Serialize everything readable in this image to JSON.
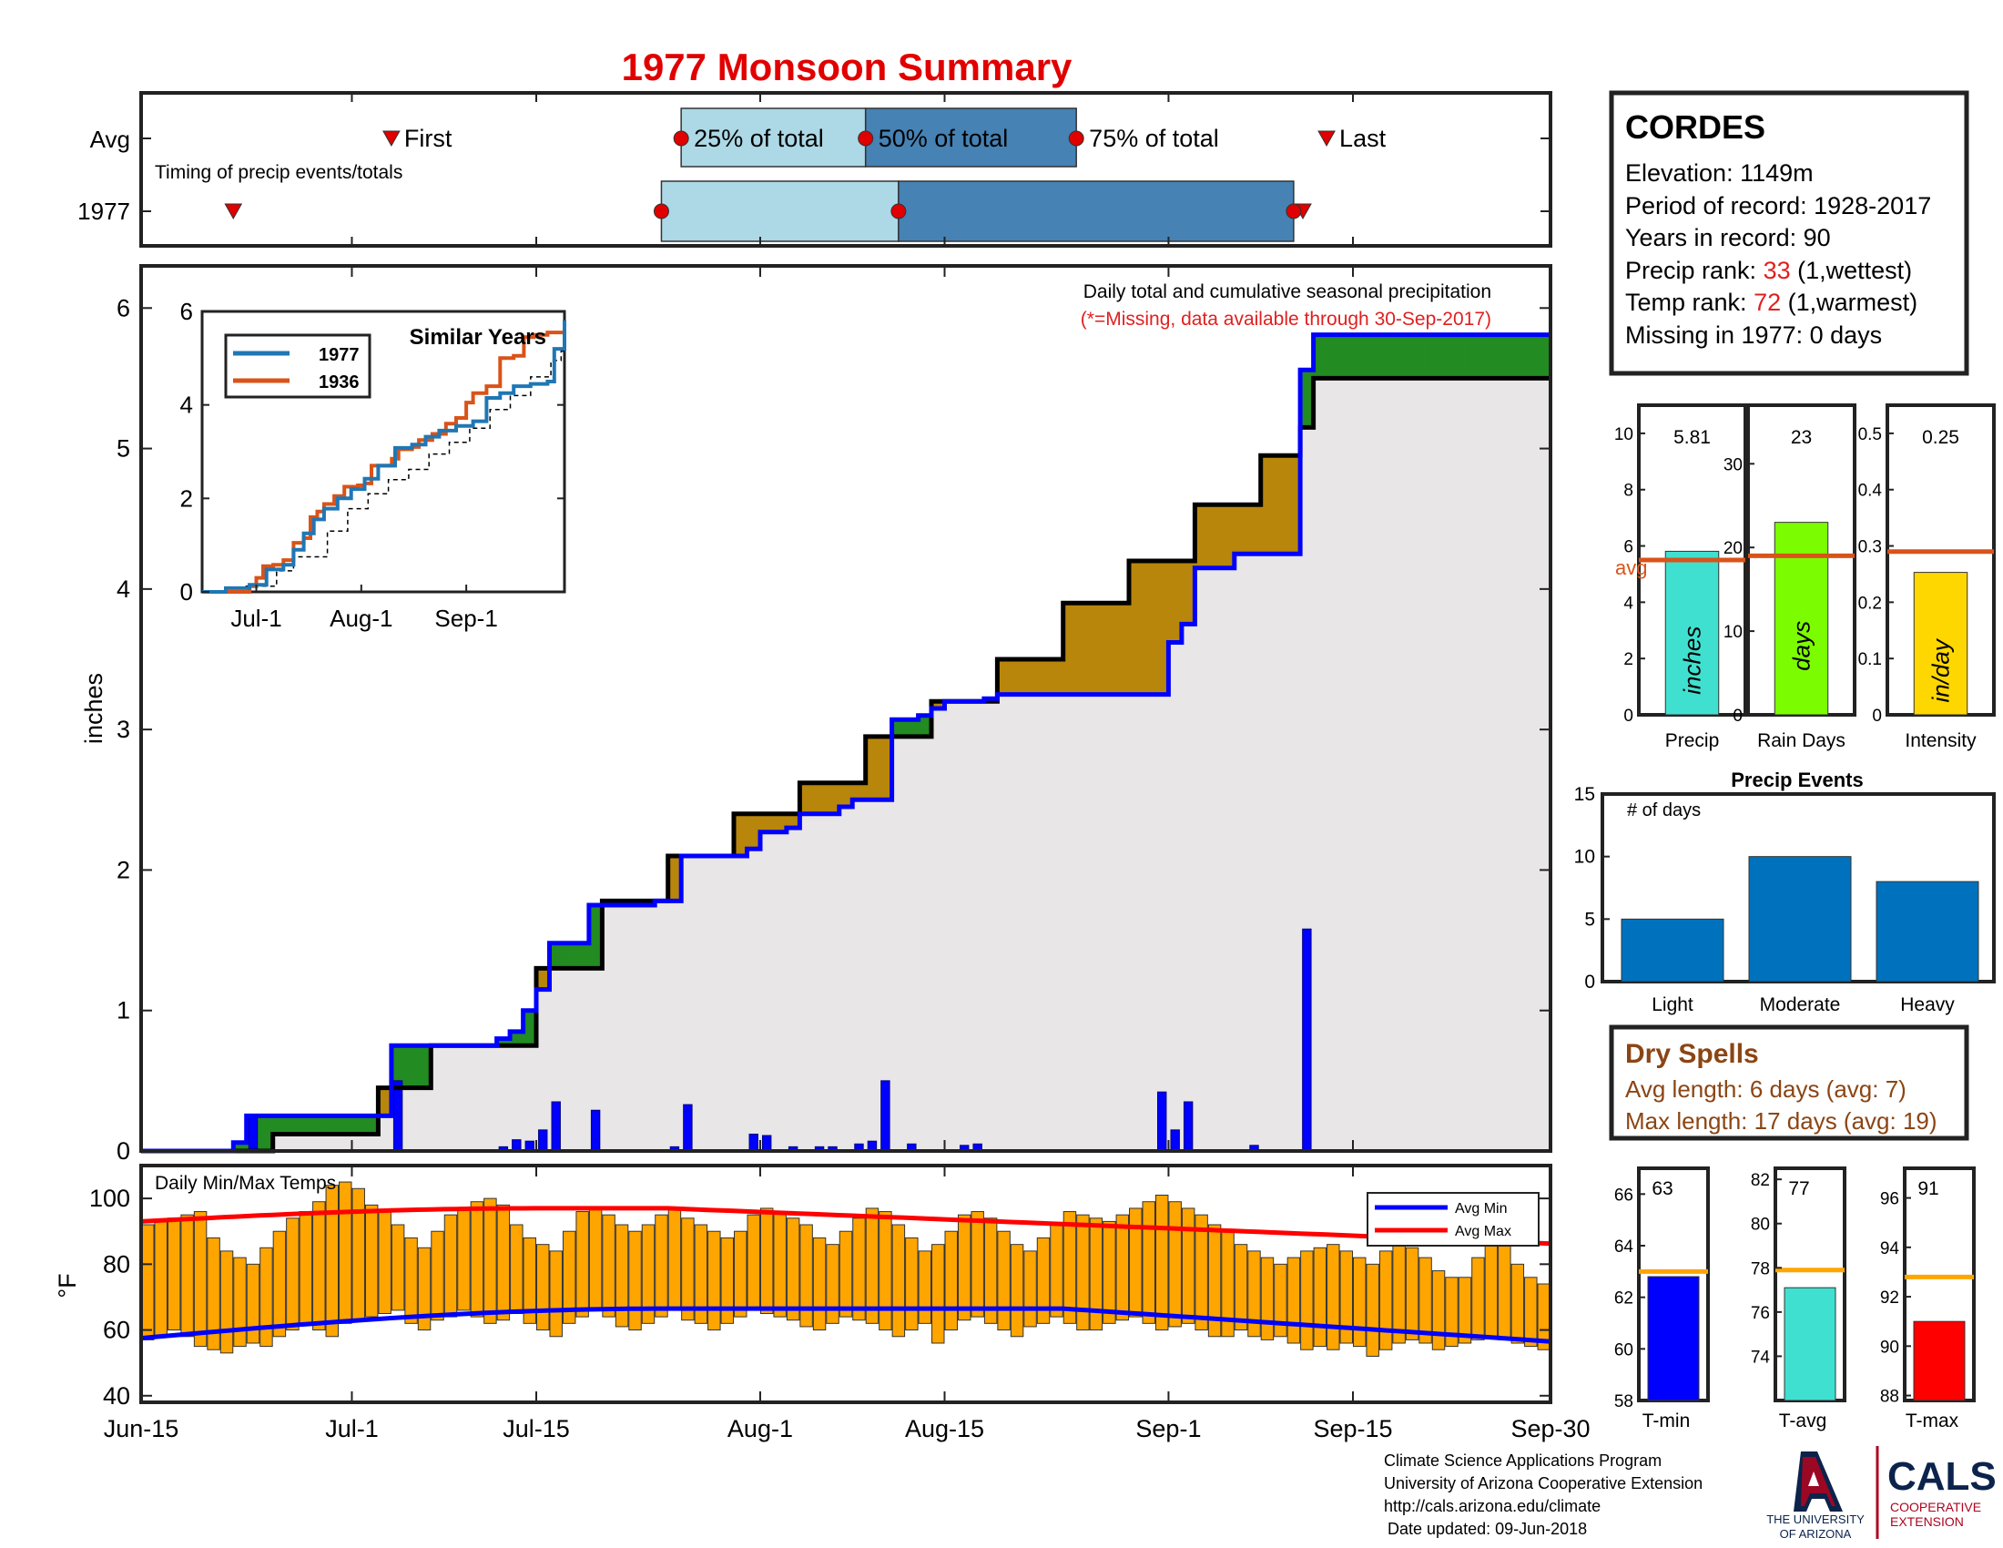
{
  "title": "1977 Monsoon Summary",
  "colors": {
    "title": "#e10000",
    "accent_red": "#e02020",
    "brown": "#8b4513",
    "light_blue": "#add8e6",
    "steel_blue": "#4682b4",
    "gold": "#b8860b",
    "green": "#228b22",
    "blue": "#0000ff",
    "orange_bar": "#ffa500"
  },
  "timing": {
    "row_labels": [
      "Avg",
      "1977"
    ],
    "subtitle": "Timing of precip events/totals",
    "labels": {
      "first": "First",
      "q25": "25% of total",
      "q50": "50% of total",
      "q75": "75% of total",
      "last": "Last"
    },
    "avg": {
      "first": 19,
      "q25": 41,
      "q50": 55,
      "q75": 71,
      "last": 90
    },
    "y1977": {
      "first": 7,
      "q25": 39.5,
      "q50": 57.5,
      "q75": 87.5,
      "last": 88.2
    }
  },
  "station": {
    "name": "CORDES",
    "elevation": "Elevation: 1149m",
    "period": "Period of record: 1928-2017",
    "years": "Years in record: 90",
    "precip_rank_label": "Precip rank: ",
    "precip_rank": "33",
    "precip_rank_note": " (1,wettest)",
    "temp_rank_label": "Temp rank: ",
    "temp_rank": "72",
    "temp_rank_note": " (1,warmest)",
    "missing": "Missing in 1977: 0 days"
  },
  "precip_panel": {
    "note": "Daily total and cumulative seasonal precipitation",
    "missing_note": "(*=Missing, data available through 30-Sep-2017)",
    "ylabel": "inches",
    "ylim": [
      0,
      6.3
    ],
    "yticks": [
      "0",
      "1",
      "2",
      "3",
      "4",
      "5",
      "6"
    ]
  },
  "similar_years": {
    "title": "Similar Years",
    "legend": [
      "1977",
      "1936"
    ],
    "yticks": [
      "0",
      "2",
      "4",
      "6"
    ],
    "xticks": [
      "Jul-1",
      "Aug-1",
      "Sep-1"
    ]
  },
  "temp_panel": {
    "label": "Daily Min/Max Temps",
    "ylabel": "°F",
    "yticks": [
      "40",
      "60",
      "80",
      "100"
    ],
    "ylim": [
      38,
      110
    ],
    "legend": [
      "Avg Min",
      "Avg Max"
    ]
  },
  "xaxis_ticks": [
    "Jun-15",
    "Jul-1",
    "Jul-15",
    "Aug-1",
    "Aug-15",
    "Sep-1",
    "Sep-15",
    "Sep-30"
  ],
  "stats": [
    {
      "label": "Precip",
      "value": "5.81",
      "inside": "inches",
      "ticks": [
        "0",
        "2",
        "4",
        "6",
        "8",
        "10"
      ],
      "ymax": 11,
      "val": 5.81,
      "avg": 5.5,
      "avg_label": "avg",
      "color": "#40e0d0"
    },
    {
      "label": "Rain Days",
      "value": "23",
      "inside": "days",
      "ticks": [
        "0",
        "10",
        "20",
        "30"
      ],
      "ymax": 37,
      "val": 23,
      "avg": 19,
      "color": "#7cfc00"
    },
    {
      "label": "Intensity",
      "value": "0.25",
      "inside": "in/day",
      "ticks": [
        "0",
        "0.1",
        "0.2",
        "0.3",
        "0.4",
        "0.5"
      ],
      "ymax": 0.55,
      "val": 0.253,
      "avg": 0.29,
      "color": "#ffd700"
    }
  ],
  "precip_events": {
    "title": "Precip Events",
    "ylabel": "# of days",
    "categories": [
      "Light",
      "Moderate",
      "Heavy"
    ],
    "values": [
      5,
      10,
      8
    ],
    "ymax": 15,
    "yticks": [
      "0",
      "5",
      "10",
      "15"
    ]
  },
  "dry_spells": {
    "title": "Dry Spells",
    "avg": "Avg length: 6 days (avg: 7)",
    "max": "Max length: 17 days (avg: 19)"
  },
  "temps": [
    {
      "label": "T-min",
      "value": "63",
      "val": 62.8,
      "avg": 63,
      "min": 58,
      "max": 67,
      "ticks": [
        "58",
        "60",
        "62",
        "64",
        "66"
      ],
      "color": "#0000ff"
    },
    {
      "label": "T-avg",
      "value": "77",
      "val": 77.1,
      "avg": 77.9,
      "min": 72,
      "max": 82.5,
      "ticks": [
        "74",
        "76",
        "78",
        "80",
        "82"
      ],
      "color": "#40e0d0"
    },
    {
      "label": "T-max",
      "value": "91",
      "val": 91,
      "avg": 92.8,
      "min": 87.8,
      "max": 97.2,
      "ticks": [
        "88",
        "90",
        "92",
        "94",
        "96"
      ],
      "color": "#ff0000"
    }
  ],
  "footer": {
    "line1": "Climate Science Applications Program",
    "line2": "University of Arizona Cooperative Extension",
    "line3": "http://cals.arizona.edu/climate",
    "line4": "Date updated: 09-Jun-2018",
    "ua_line1": "THE UNIVERSITY",
    "ua_line2": "OF ARIZONA",
    "cals": "CALS",
    "cals_line1": "COOPERATIVE",
    "cals_line2": "EXTENSION"
  },
  "chart_data": [
    {
      "type": "area",
      "title": "Daily total and cumulative seasonal precipitation",
      "ylabel": "inches",
      "ylim": [
        0,
        6.3
      ],
      "x_start": "Jun-15",
      "x_end": "Sep-30",
      "series": [
        {
          "name": "1977",
          "points": [
            [
              0,
              0
            ],
            [
              7,
              0.06
            ],
            [
              8,
              0.25
            ],
            [
              18,
              0.25
            ],
            [
              19,
              0.75
            ],
            [
              25,
              0.75
            ],
            [
              26,
              0.75
            ],
            [
              27,
              0.8
            ],
            [
              28,
              0.85
            ],
            [
              29,
              1.0
            ],
            [
              30,
              1.15
            ],
            [
              31,
              1.48
            ],
            [
              33,
              1.48
            ],
            [
              34,
              1.75
            ],
            [
              38,
              1.75
            ],
            [
              39,
              1.78
            ],
            [
              41,
              2.1
            ],
            [
              46,
              2.15
            ],
            [
              47,
              2.27
            ],
            [
              49,
              2.3
            ],
            [
              50,
              2.4
            ],
            [
              53,
              2.45
            ],
            [
              54,
              2.5
            ],
            [
              56,
              2.5
            ],
            [
              57,
              3.07
            ],
            [
              59,
              3.1
            ],
            [
              60,
              3.15
            ],
            [
              61,
              3.2
            ],
            [
              64,
              3.22
            ],
            [
              65,
              3.25
            ],
            [
              77,
              3.25
            ],
            [
              78,
              3.62
            ],
            [
              79,
              3.75
            ],
            [
              80,
              4.15
            ],
            [
              82,
              4.15
            ],
            [
              83,
              4.25
            ],
            [
              87,
              4.25
            ],
            [
              88,
              5.56
            ],
            [
              89,
              5.81
            ]
          ]
        },
        {
          "name": "Avg",
          "points": [
            [
              0,
              0
            ],
            [
              10,
              0.12
            ],
            [
              18,
              0.45
            ],
            [
              22,
              0.75
            ],
            [
              30,
              1.3
            ],
            [
              35,
              1.78
            ],
            [
              40,
              2.1
            ],
            [
              45,
              2.4
            ],
            [
              50,
              2.62
            ],
            [
              55,
              2.95
            ],
            [
              60,
              3.2
            ],
            [
              65,
              3.5
            ],
            [
              70,
              3.9
            ],
            [
              75,
              4.2
            ],
            [
              80,
              4.6
            ],
            [
              85,
              4.95
            ],
            [
              88,
              5.15
            ],
            [
              89,
              5.5
            ]
          ]
        }
      ],
      "daily_bars": [
        [
          8,
          0.25
        ],
        [
          19,
          0.5
        ],
        [
          27,
          0.03
        ],
        [
          28,
          0.08
        ],
        [
          29,
          0.07
        ],
        [
          30,
          0.15
        ],
        [
          31,
          0.35
        ],
        [
          34,
          0.29
        ],
        [
          40,
          0.03
        ],
        [
          41,
          0.33
        ],
        [
          46,
          0.12
        ],
        [
          47,
          0.11
        ],
        [
          49,
          0.03
        ],
        [
          51,
          0.03
        ],
        [
          52,
          0.03
        ],
        [
          54,
          0.05
        ],
        [
          55,
          0.07
        ],
        [
          56,
          0.5
        ],
        [
          58,
          0.05
        ],
        [
          62,
          0.04
        ],
        [
          63,
          0.05
        ],
        [
          77,
          0.42
        ],
        [
          78,
          0.15
        ],
        [
          79,
          0.35
        ],
        [
          84,
          0.04
        ],
        [
          88,
          1.58
        ]
      ]
    },
    {
      "type": "line",
      "title": "Similar Years",
      "x": [
        "Jun-15",
        "Jul-1",
        "Aug-1",
        "Sep-1",
        "Sep-30"
      ],
      "series": [
        {
          "name": "1977",
          "color": "#1f77b4"
        },
        {
          "name": "1936",
          "color": "#d95319"
        }
      ]
    },
    {
      "type": "bar",
      "title": "Daily Min/Max Temps",
      "ylabel": "°F",
      "ylim": [
        38,
        110
      ],
      "series": [
        {
          "name": "Avg Min",
          "color": "#0000ff"
        },
        {
          "name": "Avg Max",
          "color": "#ff0000"
        }
      ]
    },
    {
      "type": "bar",
      "title": "Precip Events",
      "categories": [
        "Light",
        "Moderate",
        "Heavy"
      ],
      "values": [
        5,
        10,
        8
      ]
    },
    {
      "type": "bar",
      "categories": [
        "Precip",
        "Rain Days",
        "Intensity"
      ],
      "values": [
        5.81,
        23,
        0.25
      ]
    },
    {
      "type": "bar",
      "categories": [
        "T-min",
        "T-avg",
        "T-max"
      ],
      "values": [
        63,
        77,
        91
      ]
    }
  ]
}
